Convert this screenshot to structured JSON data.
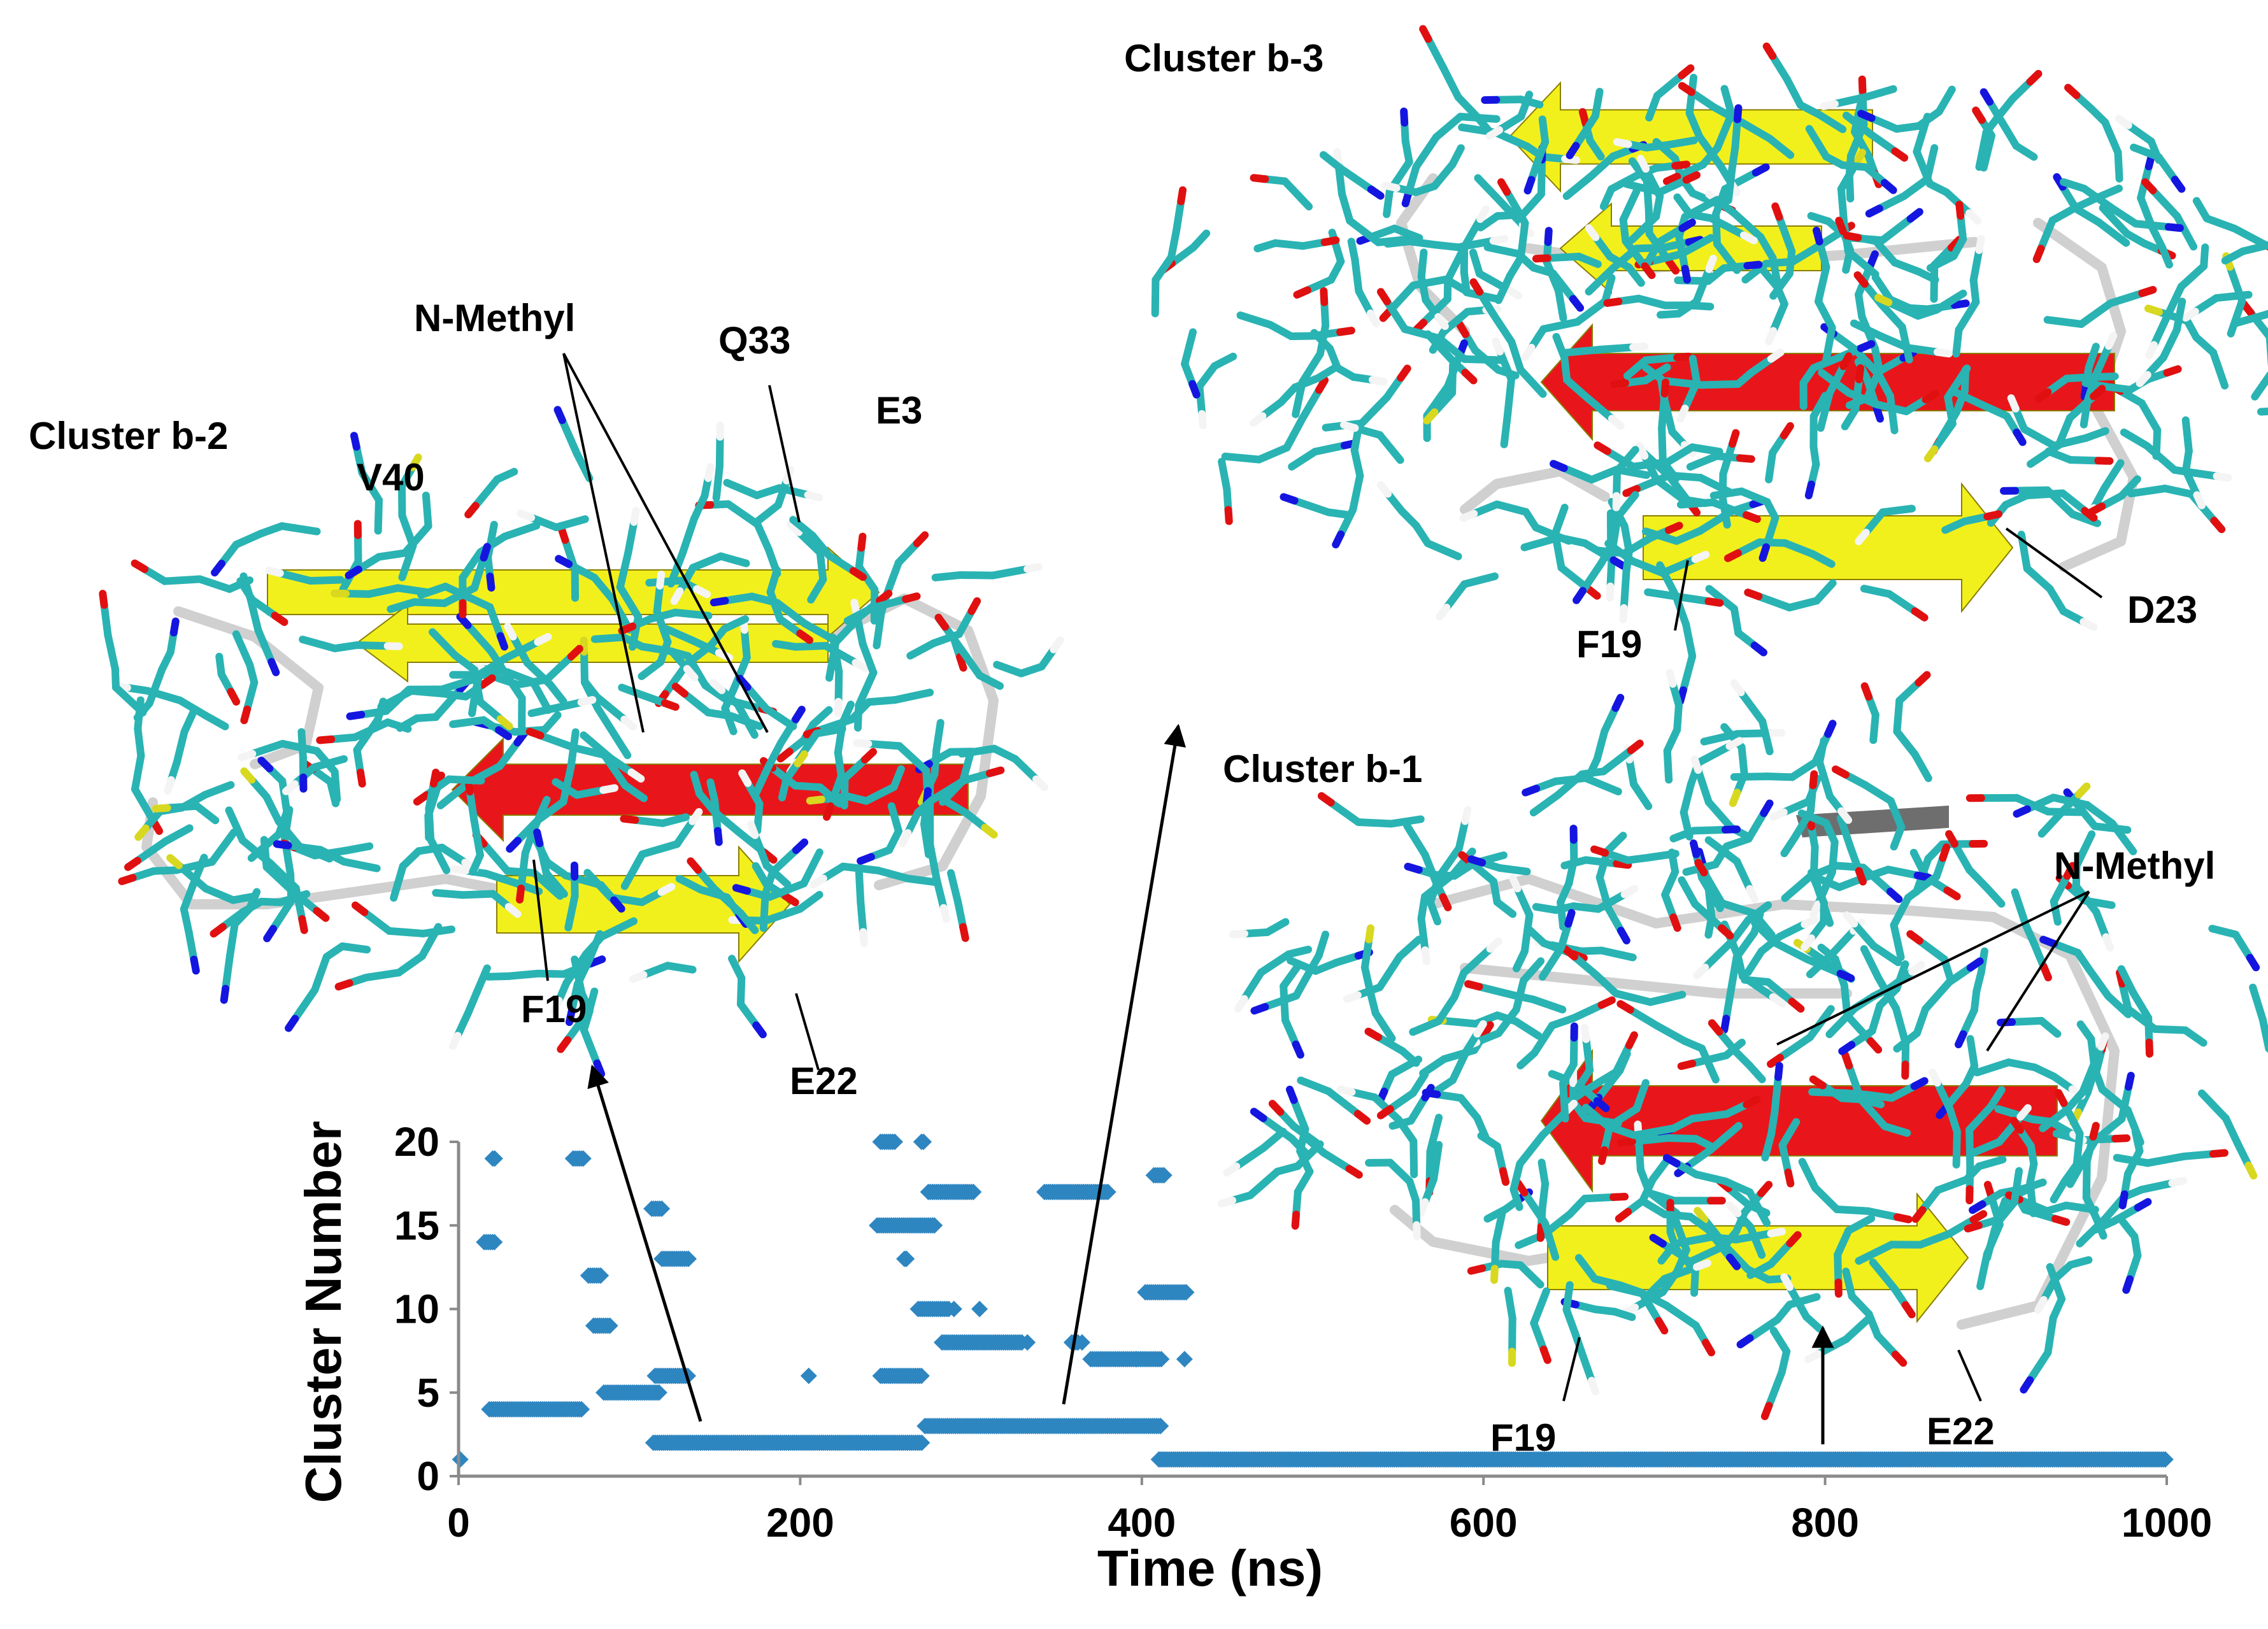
{
  "colors": {
    "marker": "#2E86C1",
    "helix_red": "#E8161A",
    "strand_yellow": "#F2F01C",
    "coil_white": "#D0D0D0",
    "carbon_cyan": "#2AB3B3",
    "oxygen_red": "#E01010",
    "nitrogen_blue": "#1515E0",
    "hydrogen_white": "#F4F4F4",
    "sulfur_yellow": "#D8D820",
    "text": "#000000"
  },
  "chart_data": {
    "type": "scatter",
    "marker": "diamond",
    "xlabel": "Time (ns)",
    "ylabel": "Cluster Number",
    "xlim": [
      0,
      1000
    ],
    "ylim": [
      0,
      20
    ],
    "x_ticks": [
      "0",
      "200",
      "400",
      "600",
      "800",
      "1000"
    ],
    "y_ticks": [
      "0",
      "5",
      "10",
      "15",
      "20"
    ],
    "segments": [
      {
        "cluster": 14,
        "x_start": 15,
        "x_end": 22
      },
      {
        "cluster": 19,
        "x_start": 20,
        "x_end": 22
      },
      {
        "cluster": 4,
        "x_start": 18,
        "x_end": 72
      },
      {
        "cluster": 19,
        "x_start": 67,
        "x_end": 73
      },
      {
        "cluster": 12,
        "x_start": 76,
        "x_end": 84
      },
      {
        "cluster": 9,
        "x_start": 79,
        "x_end": 89
      },
      {
        "cluster": 5,
        "x_start": 85,
        "x_end": 118
      },
      {
        "cluster": 16,
        "x_start": 113,
        "x_end": 120
      },
      {
        "cluster": 13,
        "x_start": 119,
        "x_end": 135
      },
      {
        "cluster": 6,
        "x_start": 115,
        "x_end": 135
      },
      {
        "cluster": 2,
        "x_start": 114,
        "x_end": 272
      },
      {
        "cluster": 20,
        "x_start": 247,
        "x_end": 256
      },
      {
        "cluster": 20,
        "x_start": 271,
        "x_end": 273
      },
      {
        "cluster": 15,
        "x_start": 245,
        "x_end": 279
      },
      {
        "cluster": 13,
        "x_start": 261,
        "x_end": 263
      },
      {
        "cluster": 17,
        "x_start": 275,
        "x_end": 302
      },
      {
        "cluster": 10,
        "x_start": 269,
        "x_end": 288
      },
      {
        "cluster": 6,
        "x_start": 247,
        "x_end": 272
      },
      {
        "cluster": 3,
        "x_start": 273,
        "x_end": 412
      },
      {
        "cluster": 8,
        "x_start": 283,
        "x_end": 330
      },
      {
        "cluster": 17,
        "x_start": 343,
        "x_end": 381
      },
      {
        "cluster": 8,
        "x_start": 359,
        "x_end": 363
      },
      {
        "cluster": 7,
        "x_start": 370,
        "x_end": 397
      },
      {
        "cluster": 7,
        "x_start": 397,
        "x_end": 412
      },
      {
        "cluster": 11,
        "x_start": 402,
        "x_end": 427
      },
      {
        "cluster": 18,
        "x_start": 407,
        "x_end": 414
      },
      {
        "cluster": 1,
        "x_start": 410,
        "x_end": 1000
      }
    ],
    "points": [
      {
        "x": 1,
        "y": 1
      },
      {
        "x": 205,
        "y": 6
      },
      {
        "x": 262,
        "y": 13
      },
      {
        "x": 290,
        "y": 10
      },
      {
        "x": 305,
        "y": 10
      },
      {
        "x": 333,
        "y": 8
      },
      {
        "x": 365,
        "y": 8
      },
      {
        "x": 425,
        "y": 7
      }
    ]
  },
  "labels": {
    "cluster_b2": "Cluster b-2",
    "cluster_b3": "Cluster b-3",
    "cluster_b1": "Cluster b-1",
    "n_methyl_top": "N-Methyl",
    "n_methyl_right": "N-Methyl",
    "v40": "V40",
    "q33": "Q33",
    "e3": "E3",
    "f19_b2": "F19",
    "e22_b2": "E22",
    "f19_b3": "F19",
    "d23_b3": "D23",
    "f19_b1": "F19",
    "e22_b1": "E22"
  }
}
